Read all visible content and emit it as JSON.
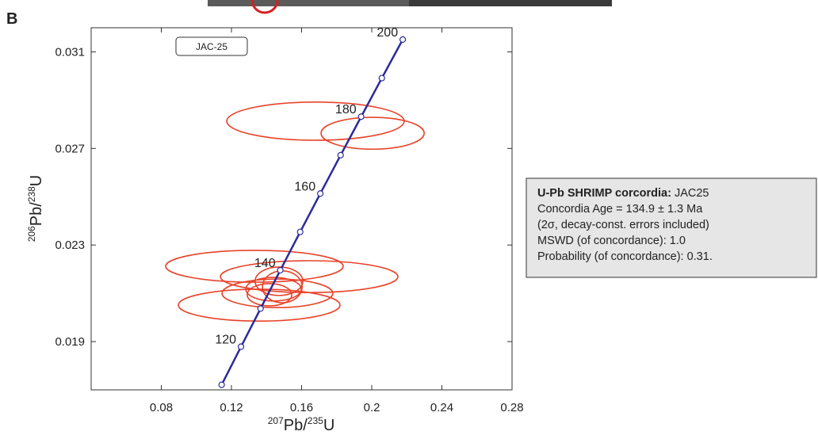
{
  "panel_label": "B",
  "chart_data": {
    "type": "concordia",
    "sample_label": "JAC-25",
    "x_label_parts": [
      "207",
      "Pb/",
      "235",
      "U"
    ],
    "y_label_parts": [
      "206",
      "Pb/",
      "238",
      "U"
    ],
    "xlim": [
      0.04,
      0.28
    ],
    "xticks": [
      0.08,
      0.12,
      0.16,
      0.2,
      0.24,
      0.28
    ],
    "ylim": [
      0.017,
      0.032
    ],
    "yticks": [
      0.019,
      0.023,
      0.027,
      0.031
    ],
    "concordia": {
      "color": "#2b2b9a",
      "x": [
        0.11442,
        0.12545,
        0.13659,
        0.14784,
        0.15919,
        0.17067,
        0.18225,
        0.19396,
        0.20576,
        0.21768
      ],
      "y": [
        0.01721,
        0.018788,
        0.020368,
        0.021955,
        0.023542,
        0.025131,
        0.026722,
        0.028316,
        0.029913,
        0.031511
      ],
      "age_labels": [
        null,
        120,
        null,
        140,
        null,
        160,
        null,
        180,
        null,
        200
      ]
    },
    "ellipses": {
      "color": "#e8432a",
      "x": [
        0.1679,
        0.2005,
        0.1331,
        0.1643,
        0.1358,
        0.1462,
        0.1471,
        0.144,
        0.149,
        0.1417
      ],
      "y": [
        0.02813,
        0.02763,
        0.02212,
        0.02169,
        0.02051,
        0.021,
        0.0215,
        0.02117,
        0.02127,
        0.02094
      ],
      "x_err": [
        0.0506,
        0.0294,
        0.0506,
        0.0506,
        0.0461,
        0.0316,
        0.0136,
        0.0158,
        0.0113,
        0.0127
      ],
      "y_err": [
        0.00079,
        0.00066,
        0.00066,
        0.00066,
        0.00066,
        0.00059,
        0.00059,
        0.00049,
        0.00066,
        0.00046
      ]
    }
  },
  "info_box": {
    "title_bold": "U-Pb SHRIMP corcordia:",
    "title_rest": " JAC25",
    "lines": [
      "Concordia Age = 134.9 ± 1.3 Ma",
      "(2σ, decay-const. errors included)",
      "MSWD (of concordance): 1.0",
      "Probability (of concordance): 0.31."
    ]
  }
}
